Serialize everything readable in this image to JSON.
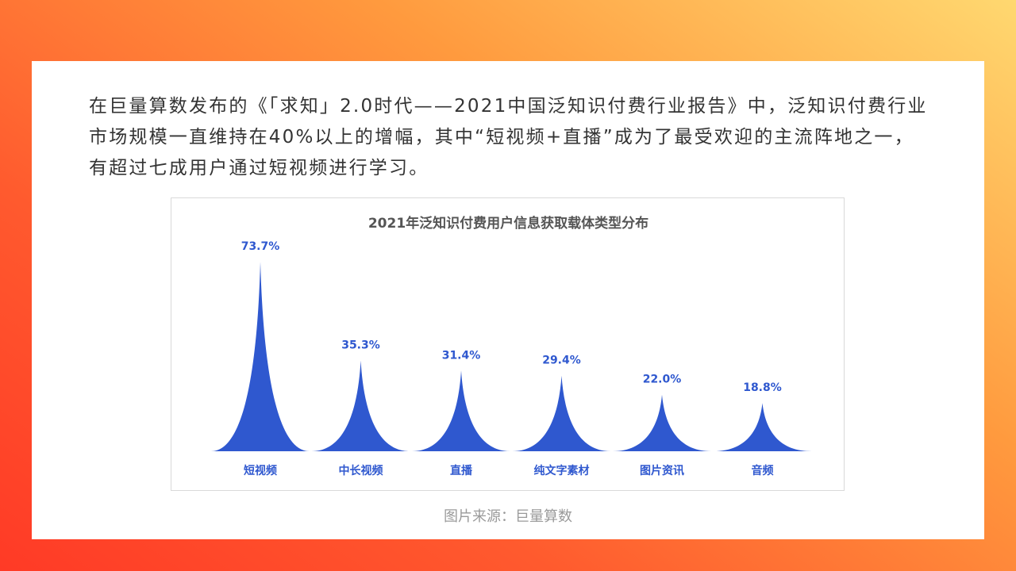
{
  "paragraph": "在巨量算数发布的《「求知」2.0时代——2021中国泛知识付费行业报告》中，泛知识付费行业市场规模一直维持在40%以上的增幅，其中“短视频+直播”成为了最受欢迎的主流阵地之一，有超过七成用户通过短视频进行学习。",
  "source": "图片来源：巨量算数",
  "chart_data": {
    "type": "bar",
    "title": "2021年泛知识付费用户信息获取载体类型分布",
    "categories": [
      "短视频",
      "中长视频",
      "直播",
      "纯文字素材",
      "图片资讯",
      "音频"
    ],
    "values": [
      73.7,
      35.3,
      31.4,
      29.4,
      22.0,
      18.8
    ],
    "value_labels": [
      "73.7%",
      "35.3%",
      "31.4%",
      "29.4%",
      "22.0%",
      "18.8%"
    ],
    "unit": "%",
    "ylim": [
      0,
      80
    ],
    "grid": false,
    "legend": "none",
    "mark_shape": "cusp",
    "color": "#2f58cf"
  }
}
